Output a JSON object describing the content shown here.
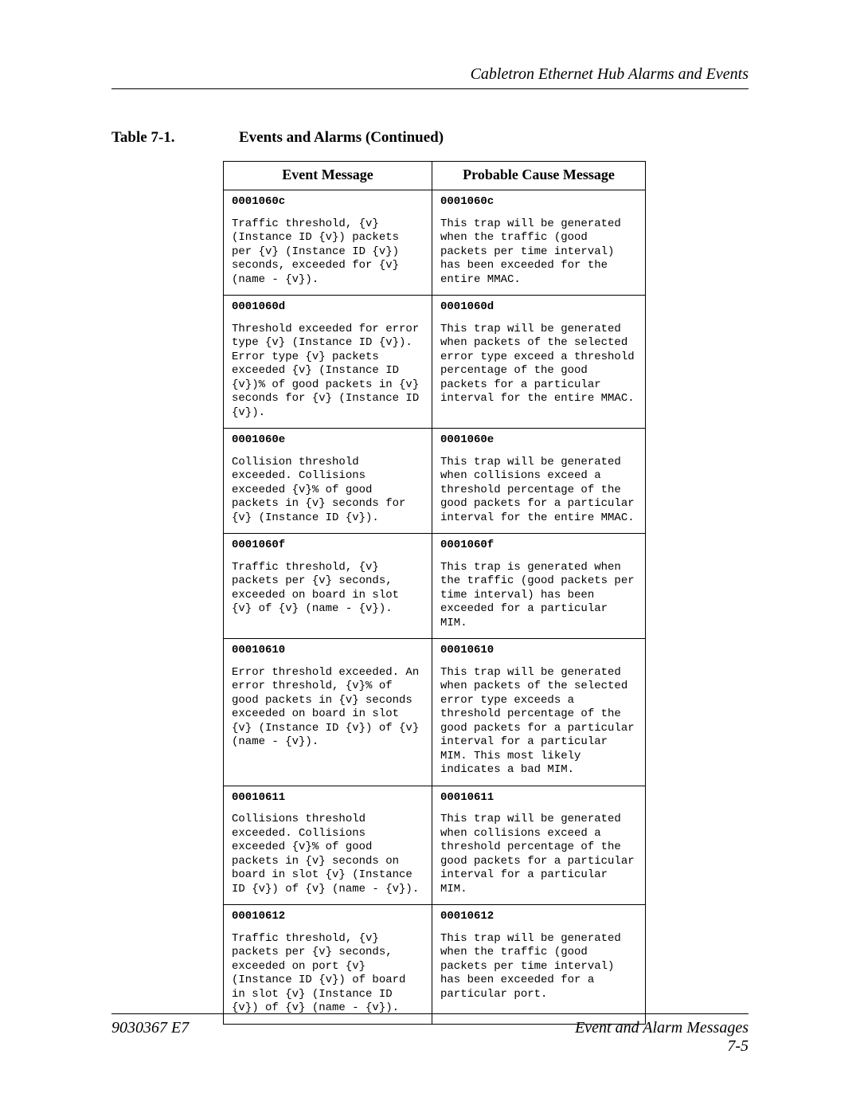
{
  "header": {
    "running_title": "Cabletron Ethernet Hub Alarms and Events"
  },
  "caption": {
    "lead": "Table 7-1.",
    "text": "Events and Alarms (Continued)"
  },
  "table": {
    "columns": [
      "Event Message",
      "Probable Cause Message"
    ],
    "rows": [
      {
        "event_code": "0001060c",
        "event_body": "Traffic threshold, {v} (Instance ID {v}) packets per {v} (Instance ID {v}) seconds, exceeded for {v} (name - {v}).",
        "cause_code": "0001060c",
        "cause_body": "This trap will be generated when the traffic (good packets per time interval) has been exceeded for the entire MMAC."
      },
      {
        "event_code": "0001060d",
        "event_body": "Threshold exceeded for error type {v} (Instance ID {v}). Error type {v} packets exceeded {v} (Instance ID {v})% of good packets in {v} seconds for {v} (Instance ID {v}).",
        "cause_code": "0001060d",
        "cause_body": "This trap will be generated when packets of the selected error type exceed a threshold percentage of the good packets for a particular interval for the entire MMAC."
      },
      {
        "event_code": "0001060e",
        "event_body": "Collision threshold exceeded. Collisions exceeded {v}% of good packets in {v} seconds for {v} (Instance ID {v}).",
        "cause_code": "0001060e",
        "cause_body": "This trap will be generated when collisions exceed a threshold percentage of the good packets for a particular interval for the entire MMAC."
      },
      {
        "event_code": "0001060f",
        "event_body": "Traffic threshold, {v} packets per {v} seconds, exceeded on board in slot {v} of {v} (name - {v}).",
        "cause_code": "0001060f",
        "cause_body": "This trap is generated when the traffic (good packets per time interval) has been exceeded for a particular MIM."
      },
      {
        "event_code": "00010610",
        "event_body": "Error threshold exceeded. An error threshold, {v}% of good packets in {v} seconds exceeded on board in slot {v} (Instance ID {v}) of {v} (name - {v}).",
        "cause_code": "00010610",
        "cause_body": "This trap will be generated when packets of the selected error type exceeds a threshold percentage of the good packets for a particular interval for a particular MIM. This most likely indicates a bad MIM."
      },
      {
        "event_code": "00010611",
        "event_body": "Collisions threshold exceeded. Collisions exceeded {v}% of good packets in {v} seconds on board in slot {v} (Instance ID {v}) of {v} (name - {v}).",
        "cause_code": "00010611",
        "cause_body": "This trap will be generated when collisions exceed a threshold percentage of the good packets for a particular interval for a particular MIM."
      },
      {
        "event_code": "00010612",
        "event_body": "Traffic threshold, {v} packets per {v} seconds, exceeded on port {v} (Instance ID {v}) of board in slot {v} (Instance ID {v}) of {v} (name - {v}).",
        "cause_code": "00010612",
        "cause_body": "This trap will be generated when the traffic (good packets per time interval) has been exceeded for a particular port."
      }
    ]
  },
  "footer": {
    "doc_ref": "9030367 E7",
    "section_title": "Event and Alarm Messages",
    "page_number": "7-5"
  }
}
